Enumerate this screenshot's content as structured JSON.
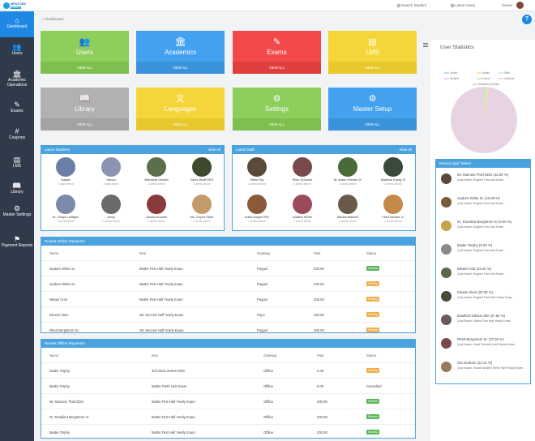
{
  "topbar": {
    "logo_line1": "MENTORS",
    "logo_line2": "Academy",
    "search": "Search Student",
    "latest_users": "Latest Users",
    "user": "Owner"
  },
  "sidebar": [
    {
      "label": "Dashboard",
      "icon": "home-icon",
      "glyph": "⌂"
    },
    {
      "label": "Users",
      "icon": "users-icon",
      "glyph": "👥"
    },
    {
      "label": "Academic Operations",
      "icon": "academic-icon",
      "glyph": "🏛"
    },
    {
      "label": "Exams",
      "icon": "exams-icon",
      "glyph": "✎"
    },
    {
      "label": "Coupons",
      "icon": "coupons-icon",
      "glyph": "#"
    },
    {
      "label": "LMS",
      "icon": "lms-icon",
      "glyph": "▤"
    },
    {
      "label": "Library",
      "icon": "library-icon",
      "glyph": "📖"
    },
    {
      "label": "Master Settings",
      "icon": "settings-icon",
      "glyph": "⚙"
    },
    {
      "label": "Payment Reports",
      "icon": "flag-icon",
      "glyph": "⚑"
    }
  ],
  "breadcrumb": "Dashboard",
  "help": "?",
  "tiles": [
    {
      "label": "Users",
      "footer": "VIEW ALL",
      "glyph": "👥",
      "color": "#8dce5c",
      "foot": "#7fbf4f"
    },
    {
      "label": "Academics",
      "footer": "VIEW ALL",
      "glyph": "🏛",
      "color": "#43a1ef",
      "foot": "#3a92db"
    },
    {
      "label": "Exams",
      "footer": "VIEW ALL",
      "glyph": "✎",
      "color": "#f24a4a",
      "foot": "#e03e3e"
    },
    {
      "label": "LMS",
      "footer": "VIEW ALL",
      "glyph": "▤",
      "color": "#f5d63a",
      "foot": "#e8c92d"
    },
    {
      "label": "Library",
      "footer": "VIEW ALL",
      "glyph": "📖",
      "color": "#b1b1b1",
      "foot": "#a3a3a3"
    },
    {
      "label": "Languages",
      "footer": "VIEW ALL",
      "glyph": "文",
      "color": "#f5d63a",
      "foot": "#e8c92d"
    },
    {
      "label": "Settings",
      "footer": "VIEW ALL",
      "glyph": "⚙",
      "color": "#8dce5c",
      "foot": "#7fbf4f"
    },
    {
      "label": "Master Setup",
      "footer": "VIEW ALL",
      "glyph": "⚙",
      "color": "#43a1ef",
      "foot": "#3a92db"
    }
  ],
  "latest_students": {
    "title": "Latest Students",
    "view_all": "View All",
    "people": [
      {
        "name": "Kalyan",
        "time": "2 days before",
        "color": "#6b7ea8"
      },
      {
        "name": "Vishnu",
        "time": "2 days before",
        "color": "#8a94b0"
      },
      {
        "name": "Bernardo Osinski",
        "time": "2 weeks before",
        "color": "#5a6f4a"
      },
      {
        "name": "Gerry Wolff DDS",
        "time": "2 weeks before",
        "color": "#3d4a2e"
      },
      {
        "name": "Dr. Chaya Luettgen",
        "time": "2 weeks before",
        "color": "#7a8aa8"
      },
      {
        "name": "Jenny",
        "time": "2 weeks before",
        "color": "#6a6a6a"
      },
      {
        "name": "Jessica Kuphal",
        "time": "2 weeks before",
        "color": "#8a3a3a"
      },
      {
        "name": "Ms. Chyna Hane",
        "time": "2 weeks before",
        "color": "#c49a6a"
      }
    ]
  },
  "latest_staff": {
    "title": "Latest Staff",
    "view_all": "View All",
    "people": [
      {
        "name": "Mario Fay",
        "time": "2 weeks before",
        "color": "#5a4a3a"
      },
      {
        "name": "River D'Amore",
        "time": "2 weeks before",
        "color": "#7a4a4a"
      },
      {
        "name": "Dr. Arden Rohden IV",
        "time": "2 weeks before",
        "color": "#4a6a3a"
      },
      {
        "name": "Madison Kozey IV",
        "time": "2 weeks before",
        "color": "#3a4a3a"
      },
      {
        "name": "Anika Hoppe PhD",
        "time": "2 weeks before",
        "color": "#8a5a3a"
      },
      {
        "name": "Adaline Hirthe",
        "time": "2 weeks before",
        "color": "#9a4a5a"
      },
      {
        "name": "Blanka Waelchi",
        "time": "2 weeks before",
        "color": "#6a5a4a"
      },
      {
        "name": "Fidel Kerluke Jr.",
        "time": "2 weeks before",
        "color": "#c48a4a"
      }
    ]
  },
  "online_payments": {
    "title": "Recent Online Payments",
    "headers": [
      "Name",
      "Item",
      "Gateway",
      "Paid",
      "Status"
    ],
    "rows": [
      {
        "name": "Isadore White Sr.",
        "item": "Maths First Half Yearly Exam",
        "gateway": "Paypal",
        "paid": "200.00",
        "status": "Success",
        "color": "#5cb85c"
      },
      {
        "name": "Isadore White Sr.",
        "item": "Maths First Half Yearly Exam",
        "gateway": "Paypal",
        "paid": "200.00",
        "status": "Pending",
        "color": "#f0ad4e"
      },
      {
        "name": "Misael Crist",
        "item": "Maths First Half Yearly Exam",
        "gateway": "Paypal",
        "paid": "200.00",
        "status": "Pending",
        "color": "#f0ad4e"
      },
      {
        "name": "Darwin Klein",
        "item": "GK Second Half Yearly Exam",
        "gateway": "Payu",
        "paid": "200.00",
        "status": "Pending",
        "color": "#f0ad4e"
      },
      {
        "name": "Rhett Bergstrom Sr.",
        "item": "GK Second Half Yearly Exam",
        "gateway": "Paypal",
        "paid": "200.00",
        "status": "Pending",
        "color": "#f0ad4e"
      }
    ]
  },
  "offline_payments": {
    "title": "Recent Offline Payments",
    "headers": [
      "Name",
      "Item",
      "Gateway",
      "Paid",
      "Status"
    ],
    "rows": [
      {
        "name": "Madie Torphy",
        "item": "3rd Class Series ENG",
        "gateway": "Offline",
        "paid": "0.00",
        "status": "Pending",
        "color": "#f0ad4e"
      },
      {
        "name": "Madie Torphy",
        "item": "Maths Tenth Unit Exam",
        "gateway": "Offline",
        "paid": "0.00",
        "status": "Cancelled",
        "color": ""
      },
      {
        "name": "Mr. Marcelo Thiel DDS",
        "item": "Maths First Half Yearly Exam",
        "gateway": "Offline",
        "paid": "200.00",
        "status": "Success",
        "color": "#5cb85c"
      },
      {
        "name": "Dr. Rosalind Bergstrom IV",
        "item": "Maths First Half Yearly Exam",
        "gateway": "Offline",
        "paid": "200.00",
        "status": "Success",
        "color": "#5cb85c"
      },
      {
        "name": "Madie Torphy",
        "item": "Maths First Half Yearly Exam",
        "gateway": "Offline",
        "paid": "200.00",
        "status": "Success",
        "color": "#5cb85c"
      }
    ]
  },
  "user_statistics": {
    "title": "User Statistics",
    "legend": [
      {
        "label": "Owner",
        "color": "#b7dcf2"
      },
      {
        "label": "Admin",
        "color": "#f6e6a6"
      },
      {
        "label": "Staff",
        "color": "#e6e6e6"
      },
      {
        "label": "Student",
        "color": "#e8d3e3"
      },
      {
        "label": "Parent",
        "color": "#cfe8c4"
      },
      {
        "label": "Librarian",
        "color": "#f3d2d2"
      },
      {
        "label": "Assistant_librarian",
        "color": "#dcdcdc"
      }
    ]
  },
  "quiz_takers": {
    "title": "Recent Quiz Takers",
    "rows": [
      {
        "name": "Mr. Marcelo Thiel DDS (12.00 %)",
        "sub": "Quiz Name: English First Unit Exam",
        "color": "#5a4a3a"
      },
      {
        "name": "Isadore White Sr. (10.00 %)",
        "sub": "Quiz Name: English First Unit Exam",
        "color": "#7a5a3a"
      },
      {
        "name": "Dr. Rosalind Bergstrom IV (0.00 %)",
        "sub": "Quiz Name: English First Unit Exam",
        "color": "#c4a44a"
      },
      {
        "name": "Madie Torphy (6.00 %)",
        "sub": "Quiz Name: English First Unit Exam",
        "color": "#8a8a8a"
      },
      {
        "name": "Misael Crist (22.00 %)",
        "sub": "Quiz Name: English First Unit Exam",
        "color": "#5a6a4a"
      },
      {
        "name": "Darwin Klein (20.00 %)",
        "sub": "Quiz Name: English First Half Yearly Exam",
        "color": "#4a4a3a"
      },
      {
        "name": "Bradford Gibson MD (37.50 %)",
        "sub": "Quiz Name: Maths First Half Yearly Exam",
        "color": "#6a5a5a"
      },
      {
        "name": "Rhett Bergstrom Sr. (37.50 %)",
        "sub": "Quiz Name: Hindi Seventh Half Yearly Exam",
        "color": "#7a4a4a"
      },
      {
        "name": "Ola Graham (12.12 %)",
        "sub": "Quiz Name: Social Studies Tenth Half Yearly Exam",
        "color": "#9a7a5a"
      }
    ]
  }
}
